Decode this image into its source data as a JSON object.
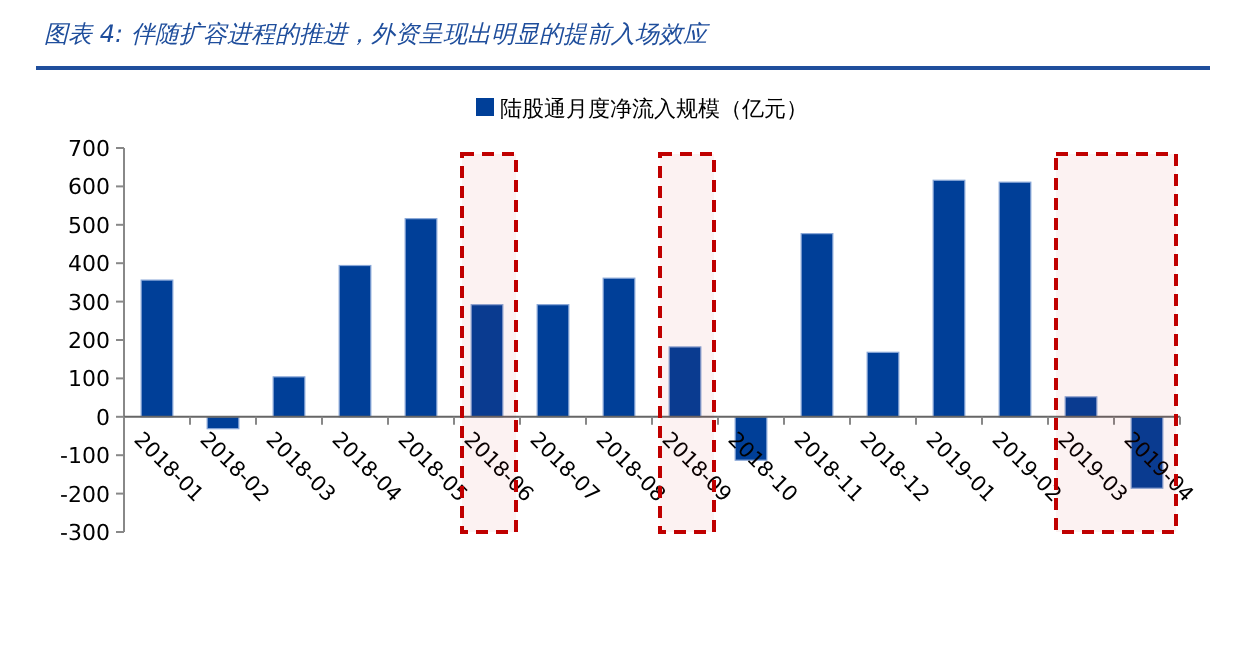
{
  "chart_data": {
    "type": "bar",
    "title": "图表 4:  伴随扩容进程的推进，外资呈现出明显的提前入场效应",
    "categories": [
      "2018-01",
      "2018-02",
      "2018-03",
      "2018-04",
      "2018-05",
      "2018-06",
      "2018-07",
      "2018-08",
      "2018-09",
      "2018-10",
      "2018-11",
      "2018-12",
      "2019-01",
      "2019-02",
      "2019-03",
      "2019-04"
    ],
    "series": [
      {
        "name": "陆股通月度净流入规模（亿元）",
        "color": "#003f98",
        "values": [
          356,
          -31,
          104,
          394,
          516,
          292,
          292,
          361,
          182,
          -113,
          477,
          168,
          616,
          611,
          52,
          -186
        ]
      }
    ],
    "ylim": [
      -300,
      700
    ],
    "yticks": [
      -300,
      -200,
      -100,
      0,
      100,
      200,
      300,
      400,
      500,
      600,
      700
    ],
    "bands": [
      {
        "axis": "x",
        "from": "2018-06",
        "to": "2018-06",
        "color": "#c00000"
      },
      {
        "axis": "x",
        "from": "2018-09",
        "to": "2018-09",
        "color": "#c00000"
      },
      {
        "axis": "x",
        "from": "2019-03",
        "to": "2019-04",
        "color": "#c00000"
      }
    ],
    "legend": "top",
    "grid": false
  }
}
